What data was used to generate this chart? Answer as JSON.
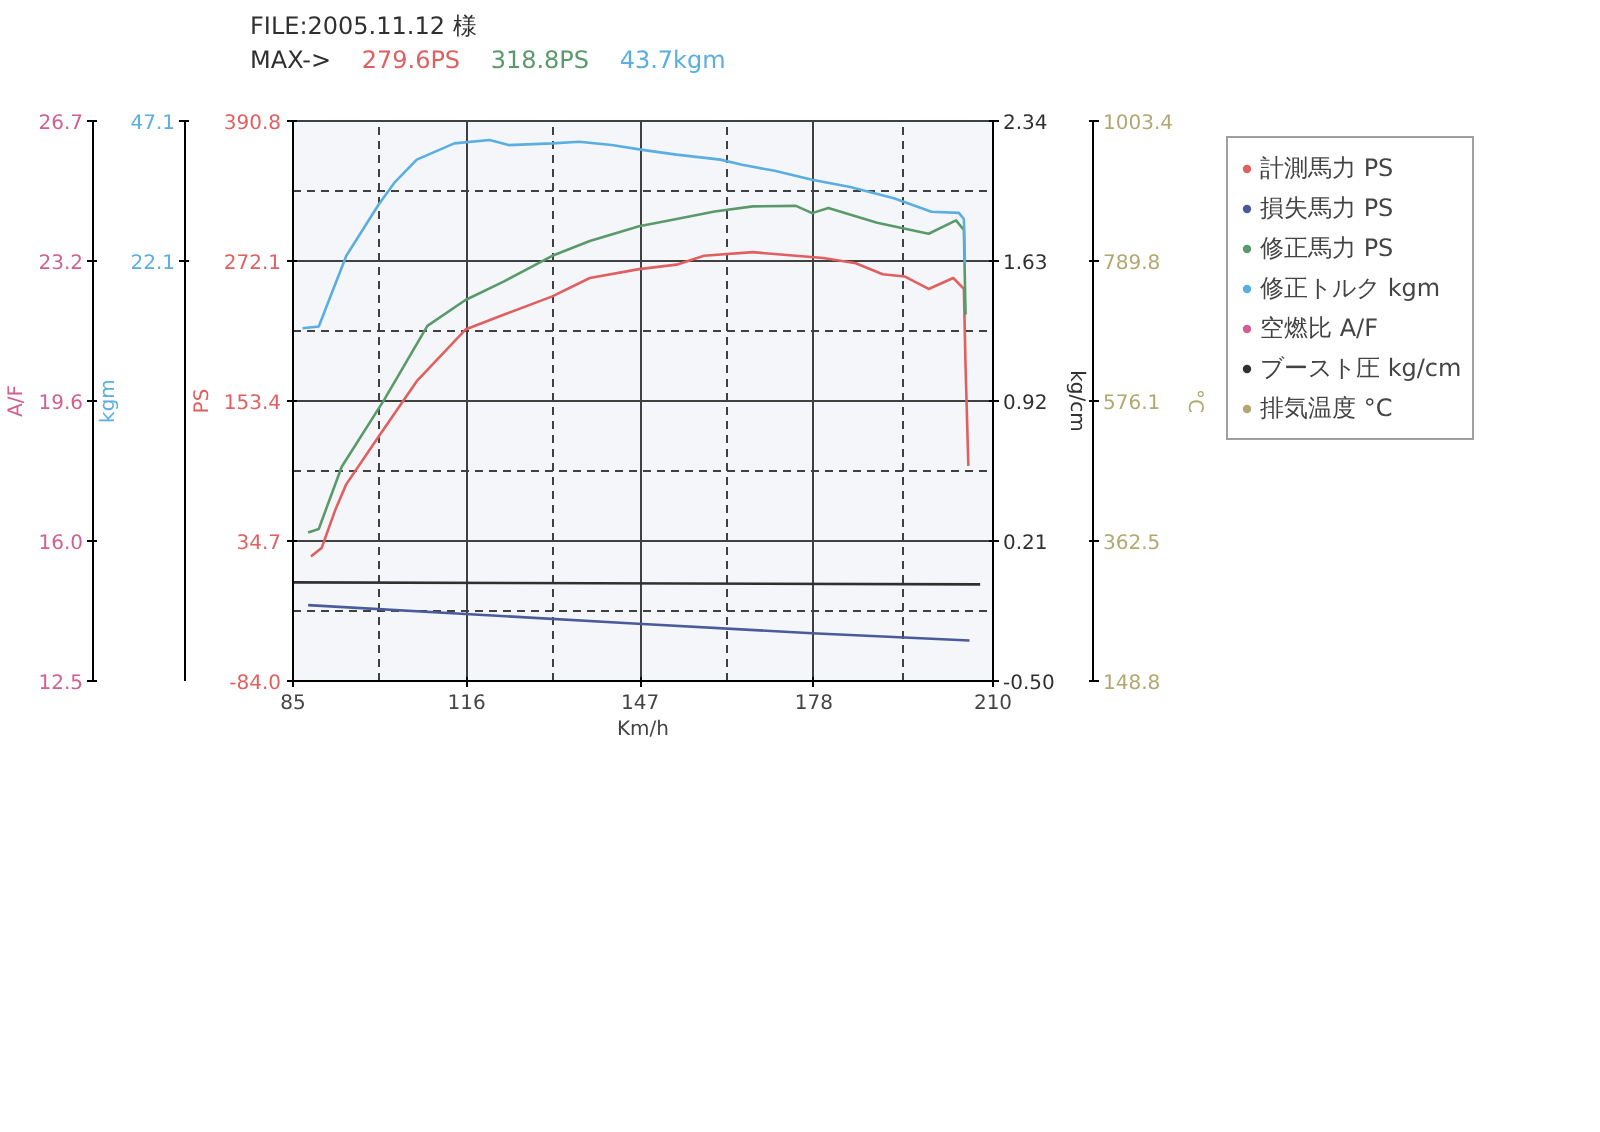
{
  "chart_data": {
    "type": "line",
    "title": "FILE:2005.11.12 様",
    "xlabel": "Km/h",
    "ylabel": "PS",
    "y2label": "kgm",
    "y3label": "kg/cm",
    "annotations": [
      "MAX->",
      "279.6PS",
      "318.8PS",
      "43.7kgm",
      "A/F",
      "26.7",
      "23.2",
      "19.6",
      "16.0",
      "12.5",
      "°C",
      "1003.4",
      "789.8",
      "576.1",
      "362.5",
      "148.8"
    ],
    "xlim": [
      85,
      210
    ],
    "xticks": [
      85,
      116,
      147,
      178,
      210
    ],
    "ylim": [
      -84.0,
      390.8
    ],
    "yticks": [
      {
        "value": -84.0,
        "label": "-84.0"
      },
      34.7,
      153.4,
      272.1,
      390.8
    ],
    "y2lim": [
      -52.9,
      47.1
    ],
    "y2ticks": [
      22.1,
      47.1
    ],
    "y3lim": [
      -0.5,
      2.34
    ],
    "y3ticks": [
      {
        "value": -0.5,
        "label": "-0.50"
      },
      0.21,
      0.92,
      1.63,
      2.34
    ],
    "grid": true,
    "legend": "right",
    "marker": "none",
    "line_style": "solid",
    "series": [
      {
        "name": "計測馬力 PS",
        "color": "#e06060",
        "x": [
          88.2,
          90.1,
          92.6,
          94.5,
          100.3,
          107.1,
          115.8,
          122.6,
          131.3,
          138.0,
          146.8,
          153.5,
          158.4,
          167.1,
          174.8,
          179.7,
          185.5,
          190.3,
          194.2,
          198.5,
          202.9,
          204.8,
          205.1,
          205.6
        ],
        "values": [
          21.5,
          28.7,
          61.7,
          82.7,
          123.3,
          170.2,
          214.0,
          226.5,
          242.1,
          257.7,
          265.2,
          269.0,
          276.5,
          279.6,
          276.5,
          274.6,
          270.2,
          260.9,
          259.0,
          248.4,
          257.7,
          248.4,
          182.7,
          98.4
        ]
      },
      {
        "name": "損失馬力 PS",
        "color": "#4a5a9a",
        "x": [
          87.7,
          115.8,
          145.8,
          177.7,
          205.8
        ],
        "values": [
          -19.7,
          -27.2,
          -35.3,
          -43.5,
          -49.7
        ]
      },
      {
        "name": "修正馬力 PS",
        "color": "#5a9a6a",
        "x": [
          87.7,
          89.6,
          93.7,
          101.3,
          109.0,
          115.8,
          122.6,
          131.3,
          138.0,
          146.8,
          153.5,
          160.3,
          167.1,
          174.8,
          177.7,
          180.6,
          189.3,
          198.5,
          203.4,
          204.8,
          205.1
        ],
        "values": [
          41.9,
          44.9,
          97.7,
          154.6,
          217.1,
          239.0,
          254.6,
          276.5,
          289.0,
          301.5,
          307.7,
          314.0,
          318.4,
          318.8,
          312.7,
          317.1,
          304.6,
          295.2,
          306.5,
          298.4,
          226.5
        ]
      },
      {
        "name": "修正トルク kgm",
        "color": "#5aaee0",
        "axis": "y2",
        "x": [
          86.7,
          89.6,
          94.5,
          100.3,
          103.2,
          107.1,
          113.8,
          120.1,
          123.5,
          131.3,
          136.1,
          141.9,
          147.7,
          153.5,
          161.3,
          165.2,
          171.0,
          177.7,
          184.5,
          192.3,
          199.0,
          203.9,
          204.8,
          205.0
        ],
        "values": [
          10.1,
          10.4,
          23.0,
          32.2,
          36.2,
          40.2,
          43.1,
          43.7,
          42.8,
          43.1,
          43.4,
          42.8,
          41.9,
          41.1,
          40.2,
          39.3,
          38.2,
          36.6,
          35.3,
          33.3,
          30.9,
          30.7,
          29.6,
          21.7
        ]
      },
      {
        "name": "空燃比 A/F",
        "color": "#d06090"
      },
      {
        "name": "ブースト圧 kg/cm",
        "color": "#303030",
        "axis": "y3",
        "x": [
          85,
          207.7
        ],
        "values": [
          0.0,
          -0.01
        ]
      },
      {
        "name": "排気温度 °C",
        "color": "#b0a870"
      }
    ]
  }
}
